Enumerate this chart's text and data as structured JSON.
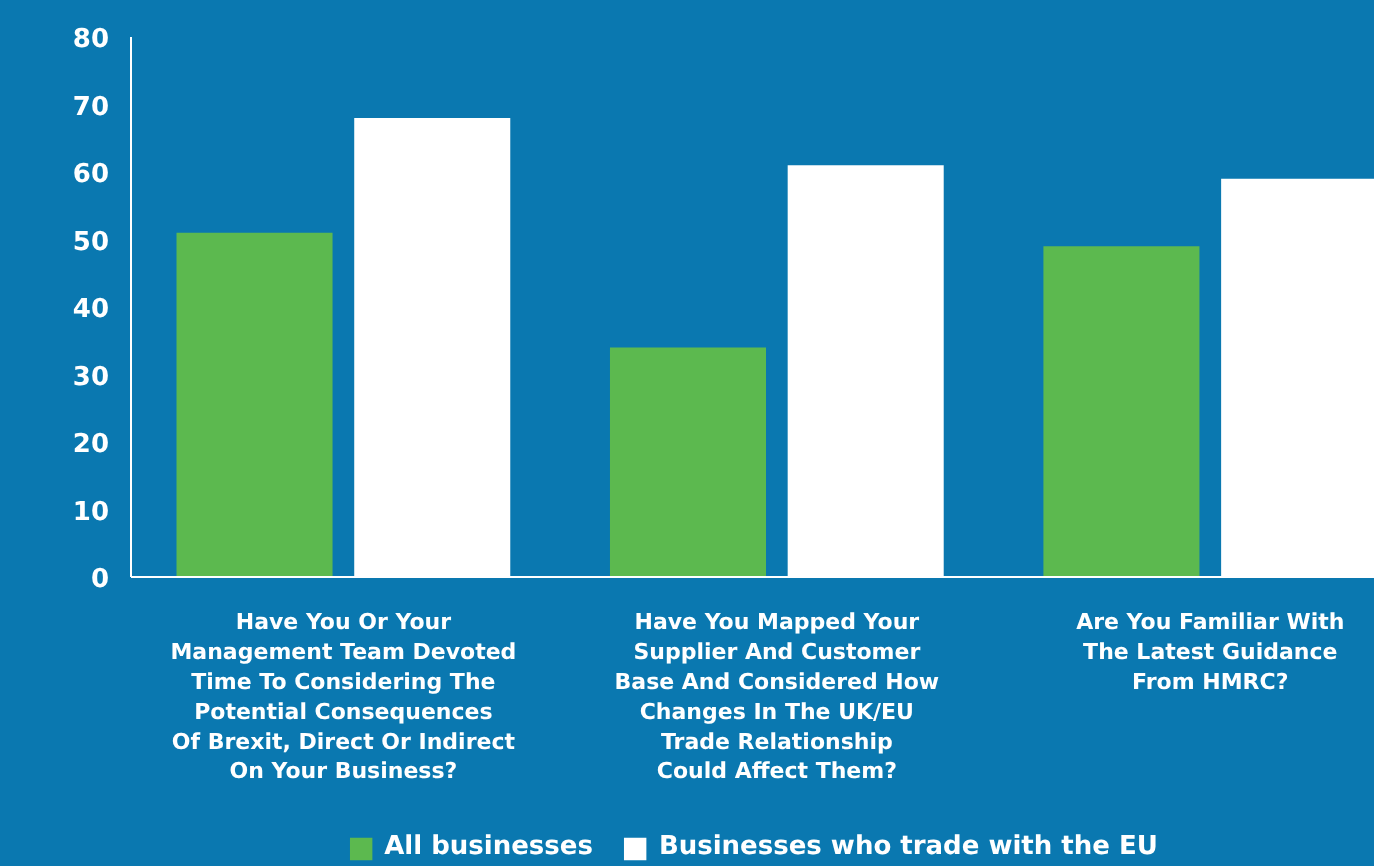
{
  "chart_data": {
    "type": "bar",
    "categories": [
      "Have You Or Your\nManagement Team Devoted\nTime To Considering The\nPotential Consequences\nOf Brexit, Direct Or Indirect\nOn Your Business?",
      "Have You Mapped Your\nSupplier And Customer\nBase And Considered How\nChanges In The UK/EU\nTrade Relationship\nCould Affect Them?",
      "Are You Familiar With\nThe Latest Guidance\nFrom HMRC?"
    ],
    "series": [
      {
        "name": "All businesses",
        "color": "#5cb94f",
        "values": [
          51,
          34,
          49
        ]
      },
      {
        "name": "Businesses who trade with the EU",
        "color": "#ffffff",
        "values": [
          68,
          61,
          59
        ]
      }
    ],
    "ylim": [
      0,
      80
    ],
    "yticks": [
      0,
      10,
      20,
      30,
      40,
      50,
      60,
      70,
      80
    ],
    "grid": false,
    "legend": "bottom"
  }
}
